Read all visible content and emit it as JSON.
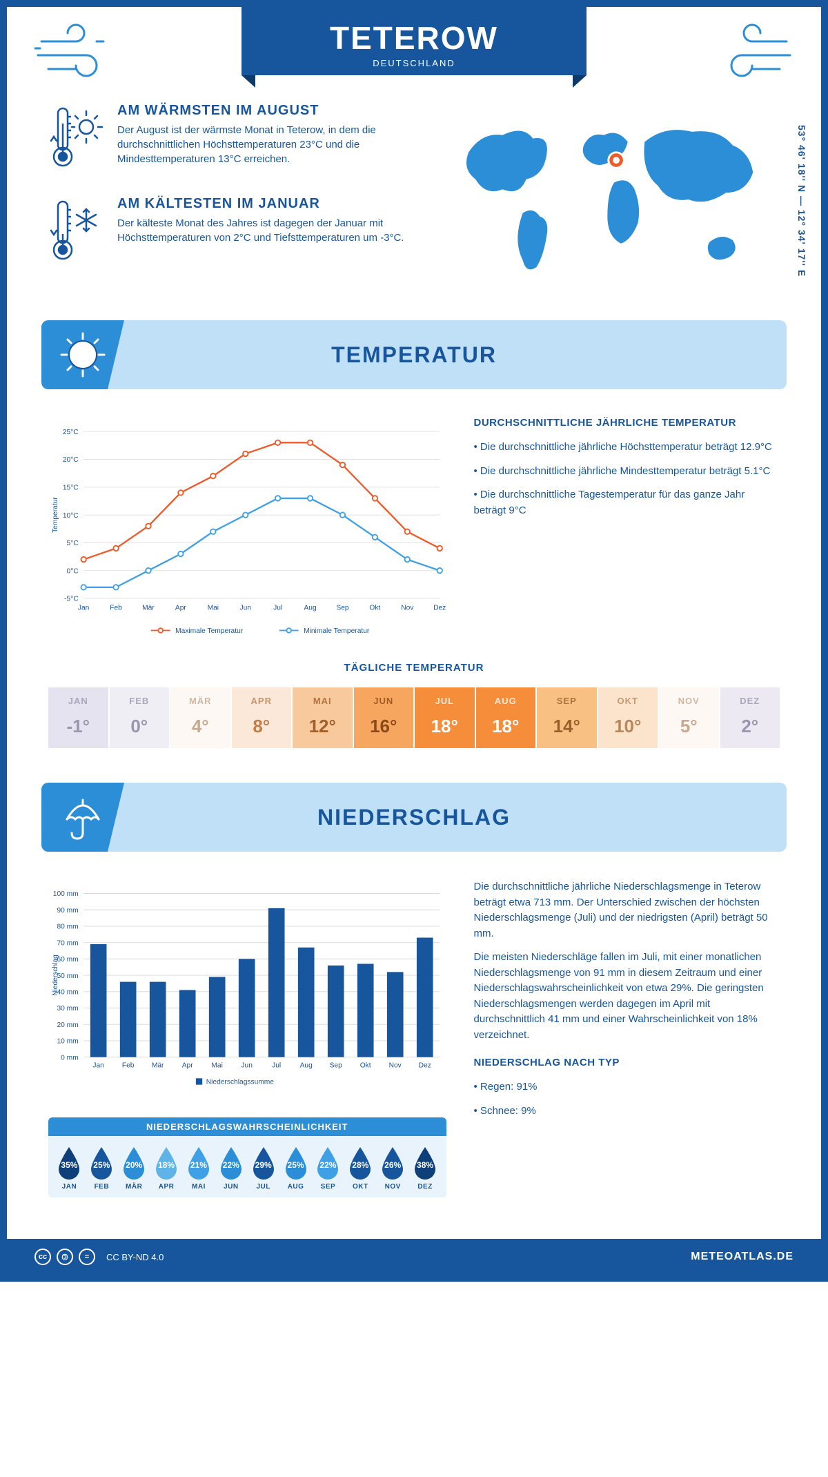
{
  "header": {
    "city": "TETEROW",
    "country": "DEUTSCHLAND",
    "coordinates": "53° 46' 18'' N — 12° 34' 17'' E"
  },
  "facts": {
    "warmest": {
      "title": "AM WÄRMSTEN IM AUGUST",
      "text": "Der August ist der wärmste Monat in Teterow, in dem die durchschnittlichen Höchsttemperaturen 23°C und die Mindesttemperaturen 13°C erreichen."
    },
    "coldest": {
      "title": "AM KÄLTESTEN IM JANUAR",
      "text": "Der kälteste Monat des Jahres ist dagegen der Januar mit Höchsttemperaturen von 2°C und Tiefsttemperaturen um -3°C."
    }
  },
  "months": [
    "Jan",
    "Feb",
    "Mär",
    "Apr",
    "Mai",
    "Jun",
    "Jul",
    "Aug",
    "Sep",
    "Okt",
    "Nov",
    "Dez"
  ],
  "months_upper": [
    "JAN",
    "FEB",
    "MÄR",
    "APR",
    "MAI",
    "JUN",
    "JUL",
    "AUG",
    "SEP",
    "OKT",
    "NOV",
    "DEZ"
  ],
  "temperature": {
    "section_title": "TEMPERATUR",
    "chart": {
      "type": "line",
      "ylabel": "Temperatur",
      "ylim": [
        -5,
        25
      ],
      "ytick_step": 5,
      "ytick_suffix": "°C",
      "max_series": {
        "label": "Maximale Temperatur",
        "color": "#f05a28",
        "values": [
          2,
          4,
          8,
          14,
          17,
          21,
          23,
          23,
          19,
          13,
          7,
          4
        ]
      },
      "min_series": {
        "label": "Minimale Temperatur",
        "color": "#3fa0e6",
        "values": [
          -3,
          -3,
          0,
          3,
          7,
          10,
          13,
          13,
          10,
          6,
          2,
          0
        ]
      },
      "grid_color": "#e0e0e0",
      "label_fontsize": 11,
      "marker": "circle"
    },
    "sidebar": {
      "title": "DURCHSCHNITTLICHE JÄHRLICHE TEMPERATUR",
      "bullets": [
        "• Die durchschnittliche jährliche Höchsttemperatur beträgt 12.9°C",
        "• Die durchschnittliche jährliche Mindesttemperatur beträgt 5.1°C",
        "• Die durchschnittliche Tagestemperatur für das ganze Jahr beträgt 9°C"
      ]
    },
    "daily": {
      "title": "TÄGLICHE TEMPERATUR",
      "values": [
        -1,
        0,
        4,
        8,
        12,
        16,
        18,
        18,
        14,
        10,
        5,
        2
      ],
      "bg_colors": [
        "#e6e3f0",
        "#f0eef5",
        "#fdf8f4",
        "#fce8d8",
        "#f9c99e",
        "#f7a660",
        "#f58d3a",
        "#f58d3a",
        "#f9c084",
        "#fce3cc",
        "#fdf8f4",
        "#ece9f2"
      ],
      "text_colors": [
        "#9a96b0",
        "#9a96b0",
        "#c9a98c",
        "#c07f4a",
        "#a35f28",
        "#8a4a1a",
        "#ffffff",
        "#ffffff",
        "#9a5f2a",
        "#b8875c",
        "#c9a98c",
        "#9a96b0"
      ]
    }
  },
  "precipitation": {
    "section_title": "NIEDERSCHLAG",
    "chart": {
      "type": "bar",
      "ylabel": "Niederschlag",
      "ylim": [
        0,
        100
      ],
      "ytick_step": 10,
      "ytick_suffix": " mm",
      "values": [
        69,
        46,
        46,
        41,
        49,
        60,
        91,
        67,
        56,
        57,
        52,
        73
      ],
      "bar_color": "#17559c",
      "grid_color": "#d8d8d8",
      "legend": "Niederschlagssumme",
      "label_fontsize": 11
    },
    "probability": {
      "title": "NIEDERSCHLAGSWAHRSCHEINLICHKEIT",
      "values": [
        35,
        25,
        20,
        18,
        21,
        22,
        29,
        25,
        22,
        28,
        26,
        38
      ],
      "colors": [
        "#0f3f78",
        "#17559c",
        "#2b8ed6",
        "#5fb3e6",
        "#3fa0e6",
        "#2b8ed6",
        "#17559c",
        "#2b8ed6",
        "#3fa0e6",
        "#17559c",
        "#17559c",
        "#0f3f78"
      ]
    },
    "sidebar": {
      "para1": "Die durchschnittliche jährliche Niederschlagsmenge in Teterow beträgt etwa 713 mm. Der Unterschied zwischen der höchsten Niederschlagsmenge (Juli) und der niedrigsten (April) beträgt 50 mm.",
      "para2": "Die meisten Niederschläge fallen im Juli, mit einer monatlichen Niederschlagsmenge von 91 mm in diesem Zeitraum und einer Niederschlagswahrscheinlichkeit von etwa 29%. Die geringsten Niederschlagsmengen werden dagegen im April mit durchschnittlich 41 mm und einer Wahrscheinlichkeit von 18% verzeichnet.",
      "type_title": "NIEDERSCHLAG NACH TYP",
      "type_bullets": [
        "• Regen: 91%",
        "• Schnee: 9%"
      ]
    }
  },
  "footer": {
    "license": "CC BY-ND 4.0",
    "site": "METEOATLAS.DE"
  },
  "colors": {
    "primary": "#17559c",
    "accent": "#2b8ed6",
    "light_blue": "#bfe0f7",
    "orange": "#f05a28"
  }
}
